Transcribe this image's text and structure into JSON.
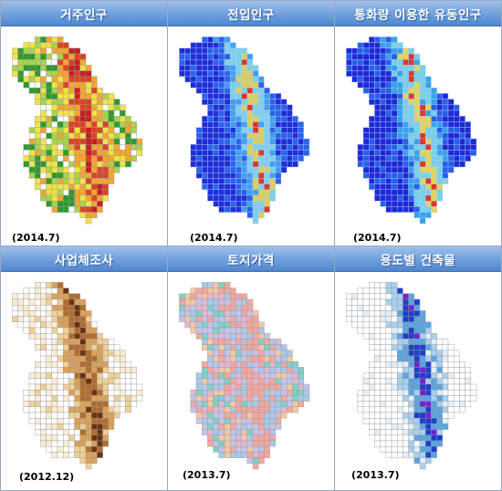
{
  "panels": [
    {
      "id": "p1",
      "title": "거주인구",
      "date": "(2014.7)",
      "palette": "heat",
      "colors": [
        "#2e9a2e",
        "#a7d44c",
        "#f0e34a",
        "#f3a533",
        "#d94424",
        "#c81e1e"
      ]
    },
    {
      "id": "p2",
      "title": "전입인구",
      "date": "(2014.7)",
      "palette": "blue",
      "colors": [
        "#1e2fd6",
        "#2a63ea",
        "#3fa0ee",
        "#7dd0ea",
        "#d8d05a",
        "#d83a2a"
      ]
    },
    {
      "id": "p3",
      "title": "통화량 이용한 유동인구",
      "date": "(2014.7)",
      "palette": "blue2",
      "colors": [
        "#1d2ad4",
        "#2660e6",
        "#36a2ea",
        "#76d1e6",
        "#e0d55a",
        "#d83a2a"
      ]
    },
    {
      "id": "p4",
      "title": "사업체조사",
      "date": "(2012.12)",
      "palette": "brown",
      "colors": [
        "#f8ecd2",
        "#eecf97",
        "#d9a15a",
        "#b06c2e",
        "#6b3210"
      ]
    },
    {
      "id": "p5",
      "title": "토지가격",
      "date": "(2013.7)",
      "palette": "land",
      "colors": [
        "#a9c8e8",
        "#c4c4ea",
        "#e2b7cf",
        "#f1a7a0",
        "#7fd0c8",
        "#f4c7a4"
      ]
    },
    {
      "id": "p6",
      "title": "용도별 건축물",
      "date": "(2013.7)",
      "palette": "build",
      "colors": [
        "#ffffff",
        "#e2eef8",
        "#a8cfee",
        "#5aa5e0",
        "#1e3fc9",
        "#7a1fd0"
      ]
    }
  ]
}
